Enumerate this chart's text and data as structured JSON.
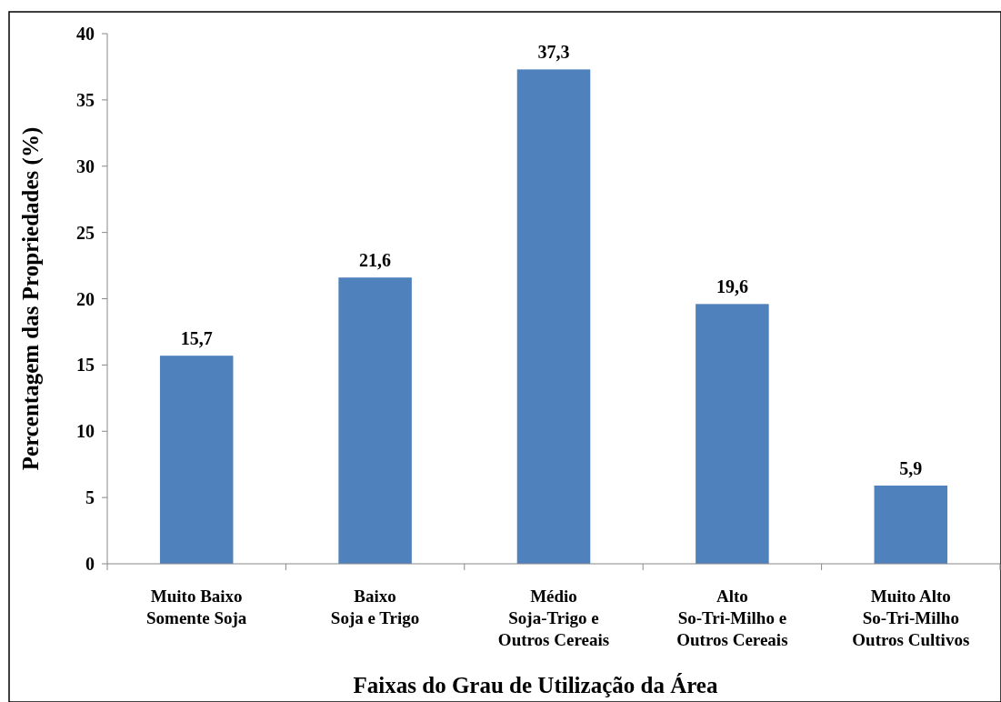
{
  "chart_data": {
    "type": "bar",
    "xlabel": "Faixas do Grau de Utilização da Área",
    "ylabel": "Percentagem das Propriedades (%)",
    "categories": [
      "Muito Baixo\nSomente Soja",
      "Baixo\nSoja e Trigo",
      "Médio\nSoja-Trigo e\nOutros Cereais",
      "Alto\nSo-Tri-Milho e\nOutros Cereais",
      "Muito Alto\nSo-Tri-Milho\nOutros Cultivos"
    ],
    "values": [
      15.7,
      21.6,
      37.3,
      19.6,
      5.9
    ],
    "value_labels": [
      "15,7",
      "21,6",
      "37,3",
      "19,6",
      "5,9"
    ],
    "color": "#4f81bd",
    "ylim": [
      0,
      40
    ],
    "yticks": [
      0,
      5,
      10,
      15,
      20,
      25,
      30,
      35,
      40
    ]
  }
}
